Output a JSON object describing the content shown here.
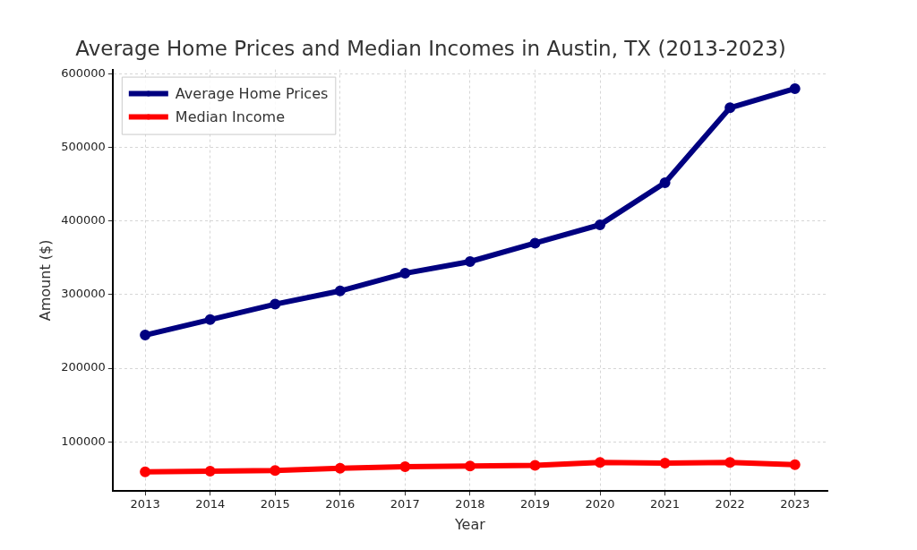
{
  "chart_data": {
    "type": "line",
    "title": "Average Home Prices and Median Incomes in Austin, TX (2013-2023)",
    "x_label": "Year",
    "y_label": "Amount ($)",
    "categories": [
      "2013",
      "2014",
      "2015",
      "2016",
      "2017",
      "2018",
      "2019",
      "2020",
      "2021",
      "2022",
      "2023"
    ],
    "series": [
      {
        "name": "Average Home Prices",
        "color": "#000080",
        "marker": "circle",
        "values": [
          245000,
          266000,
          287000,
          305000,
          329000,
          345000,
          370000,
          395000,
          452000,
          554000,
          580000
        ]
      },
      {
        "name": "Median Income",
        "color": "#ff0000",
        "marker": "circle",
        "values": [
          59000,
          60000,
          61000,
          64000,
          66000,
          67000,
          68000,
          72000,
          71000,
          72000,
          69000
        ]
      }
    ],
    "ylim": [
      33000,
      606000
    ],
    "yticks": [
      100000,
      200000,
      300000,
      400000,
      500000,
      600000
    ],
    "grid": true,
    "legend": "upper left"
  }
}
